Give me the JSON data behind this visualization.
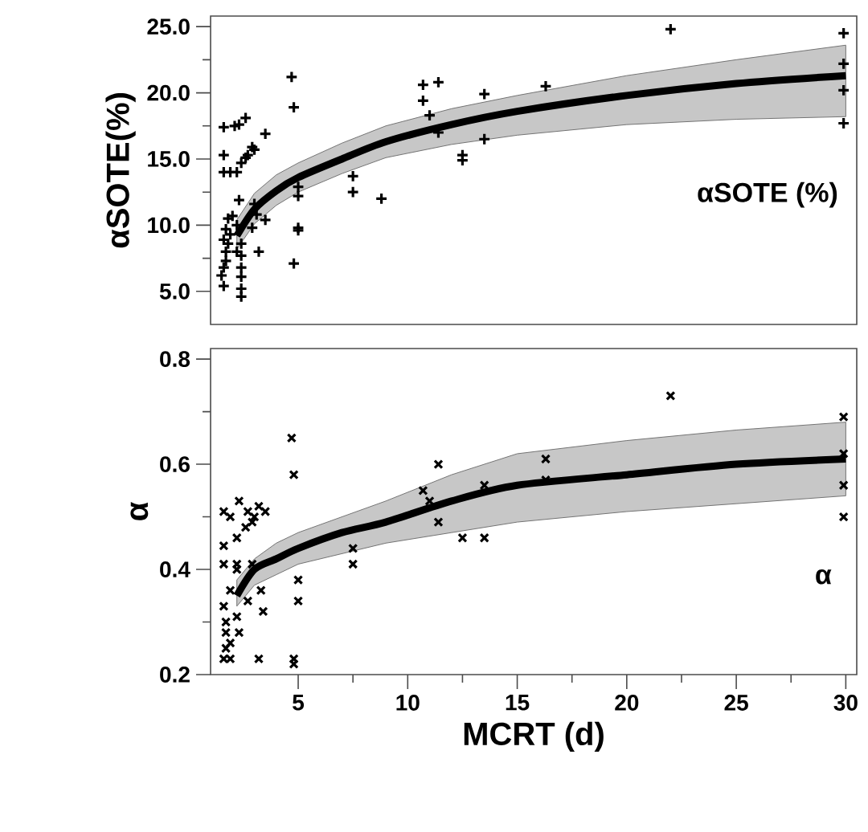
{
  "chart_data": [
    {
      "type": "scatter",
      "ylabel": "αSOTE(%)",
      "xlim": [
        1,
        30.5
      ],
      "ylim": [
        2.5,
        25.8
      ],
      "tick_labels": "y",
      "grid": false,
      "yticks": [
        {
          "value": 5,
          "label": "5.0"
        },
        {
          "value": 10,
          "label": "10.0"
        },
        {
          "value": 15,
          "label": "15.0"
        },
        {
          "value": 20,
          "label": "20.0"
        },
        {
          "value": 25,
          "label": "25.0"
        }
      ],
      "annotations": [
        "αSOTE (%)"
      ],
      "series": [
        {
          "marker": "plus",
          "color": "#000000",
          "x": [
            1.6,
            2.1,
            2.3,
            2.6,
            1.6,
            1.6,
            1.9,
            2.2,
            2.4,
            2.6,
            2.7,
            3.0,
            2.9,
            3.5,
            4.7,
            4.8,
            5.0,
            5.0,
            5.0,
            5.0,
            4.8,
            7.5,
            7.5,
            8.8,
            1.6,
            1.5,
            1.6,
            1.7,
            1.7,
            1.8,
            1.6,
            1.7,
            1.8,
            2.4,
            2.4,
            2.4,
            2.4,
            2.4,
            2.4,
            2.2,
            2.2,
            2.3,
            3.0,
            3.1,
            2.9,
            3.5,
            3.2,
            2.0,
            1.9,
            10.7,
            11.4,
            10.7,
            11.0,
            11.4,
            12.5,
            12.5,
            13.5,
            13.5,
            16.3,
            22.0,
            29.9,
            29.9,
            29.9,
            29.9
          ],
          "values": [
            17.4,
            17.5,
            17.6,
            18.1,
            15.3,
            14.0,
            14.0,
            14.0,
            14.7,
            15.1,
            15.3,
            15.7,
            15.9,
            16.9,
            21.2,
            18.9,
            12.9,
            12.2,
            9.8,
            9.6,
            7.1,
            13.7,
            12.5,
            12.0,
            5.4,
            6.2,
            6.8,
            7.3,
            8.0,
            8.6,
            8.9,
            9.7,
            10.5,
            8.6,
            7.7,
            6.8,
            6.1,
            5.2,
            4.6,
            8.0,
            10.0,
            11.9,
            11.6,
            10.8,
            9.8,
            10.4,
            8.0,
            10.7,
            9.3,
            20.6,
            20.8,
            19.4,
            18.3,
            17.0,
            15.3,
            14.9,
            19.9,
            16.5,
            20.5,
            24.8,
            24.5,
            22.2,
            20.2,
            17.7
          ]
        },
        {
          "type": "line",
          "color": "#000000",
          "x": [
            2.2,
            3,
            4,
            5,
            7,
            9,
            12,
            15,
            20,
            25,
            30
          ],
          "values": [
            9.2,
            11.2,
            12.6,
            13.6,
            15.0,
            16.3,
            17.6,
            18.6,
            19.8,
            20.7,
            21.3
          ],
          "upper": [
            10.4,
            12.4,
            13.8,
            14.7,
            16.2,
            17.5,
            18.8,
            19.8,
            21.3,
            22.5,
            23.6
          ],
          "lower": [
            8.2,
            10.1,
            11.5,
            12.5,
            13.9,
            15.1,
            16.1,
            16.8,
            17.6,
            18.0,
            18.2
          ]
        }
      ]
    },
    {
      "type": "scatter",
      "ylabel": "α",
      "xlabel": "MCRT (d)",
      "xlim": [
        1,
        30.5
      ],
      "ylim": [
        0.2,
        0.82
      ],
      "grid": false,
      "xticks": [
        5,
        10,
        15,
        20,
        25,
        30
      ],
      "yticks": [
        {
          "value": 0.2,
          "label": "0.2"
        },
        {
          "value": 0.4,
          "label": "0.4"
        },
        {
          "value": 0.6,
          "label": "0.6"
        },
        {
          "value": 0.8,
          "label": "0.8"
        }
      ],
      "annotations": [
        "α"
      ],
      "series": [
        {
          "marker": "cross",
          "color": "#000000",
          "x": [
            1.6,
            1.9,
            2.3,
            2.7,
            3.0,
            3.2,
            3.5,
            2.2,
            2.6,
            2.9,
            1.6,
            1.6,
            2.2,
            2.9,
            2.2,
            4.7,
            4.8,
            5.0,
            5.0,
            4.8,
            4.8,
            3.2,
            7.5,
            7.5,
            1.6,
            1.7,
            1.7,
            1.7,
            1.6,
            1.9,
            2.2,
            2.3,
            1.9,
            2.7,
            3.3,
            3.4,
            1.9,
            11.4,
            10.7,
            11.0,
            11.4,
            12.5,
            13.5,
            13.5,
            16.3,
            16.3,
            22.0,
            29.9,
            29.9,
            29.9,
            29.9
          ],
          "values": [
            0.51,
            0.5,
            0.53,
            0.51,
            0.5,
            0.52,
            0.51,
            0.46,
            0.48,
            0.49,
            0.445,
            0.41,
            0.41,
            0.41,
            0.4,
            0.65,
            0.58,
            0.38,
            0.34,
            0.23,
            0.22,
            0.23,
            0.44,
            0.41,
            0.33,
            0.3,
            0.28,
            0.25,
            0.23,
            0.26,
            0.31,
            0.28,
            0.36,
            0.34,
            0.36,
            0.32,
            0.23,
            0.6,
            0.55,
            0.53,
            0.49,
            0.46,
            0.46,
            0.56,
            0.61,
            0.57,
            0.73,
            0.69,
            0.62,
            0.56,
            0.5
          ]
        },
        {
          "type": "line",
          "color": "#000000",
          "x": [
            2.2,
            3,
            4,
            5,
            7,
            9,
            12,
            15,
            20,
            25,
            30
          ],
          "values": [
            0.35,
            0.4,
            0.42,
            0.44,
            0.47,
            0.49,
            0.53,
            0.56,
            0.58,
            0.6,
            0.61
          ],
          "upper": [
            0.38,
            0.42,
            0.45,
            0.47,
            0.5,
            0.53,
            0.58,
            0.62,
            0.645,
            0.665,
            0.68
          ],
          "lower": [
            0.33,
            0.37,
            0.39,
            0.41,
            0.43,
            0.45,
            0.47,
            0.49,
            0.51,
            0.525,
            0.54
          ]
        }
      ]
    }
  ]
}
